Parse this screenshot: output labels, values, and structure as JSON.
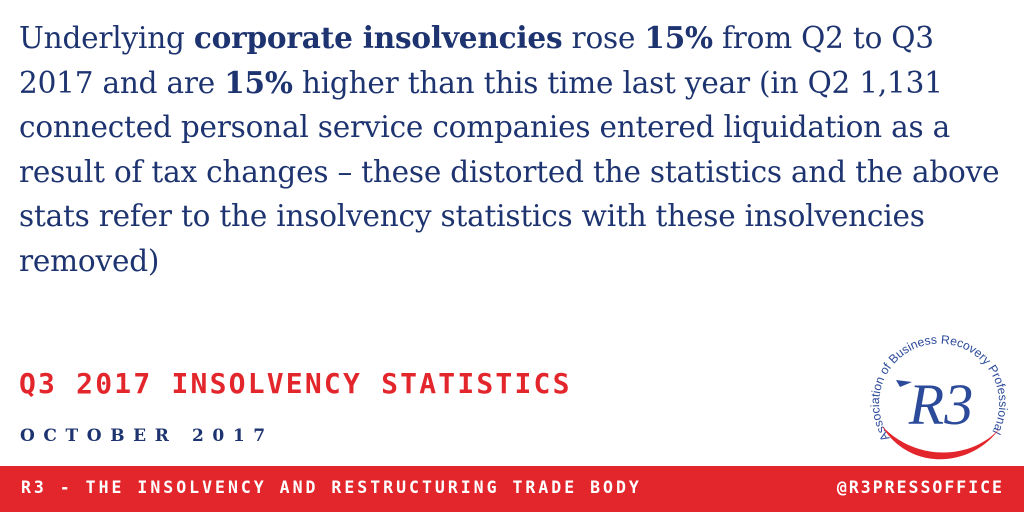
{
  "statement": {
    "p1": "Underlying ",
    "b1": "corporate insolvencies",
    "p2": " rose ",
    "b2": "15%",
    "p3": " from Q2 to Q3 2017 and are ",
    "b3": "15%",
    "p4": " higher than this time last year (in Q2 1,131 connected personal service companies entered liquidation as a result of tax changes – these distorted the statistics and the above stats refer to the insolvency statistics with these insolvencies removed)"
  },
  "title": "Q3 2017 INSOLVENCY STATISTICS",
  "date": "OCTOBER 2017",
  "logo": {
    "mark": "R3",
    "arc_text": "Association of Business Recovery Professionals"
  },
  "footer": {
    "left": "R3 - THE INSOLVENCY AND RESTRUCTURING TRADE BODY",
    "right": "@R3PRESSOFFICE"
  },
  "colors": {
    "navy": "#1e3470",
    "red": "#e3262c",
    "logo_blue": "#2b4a9a"
  }
}
